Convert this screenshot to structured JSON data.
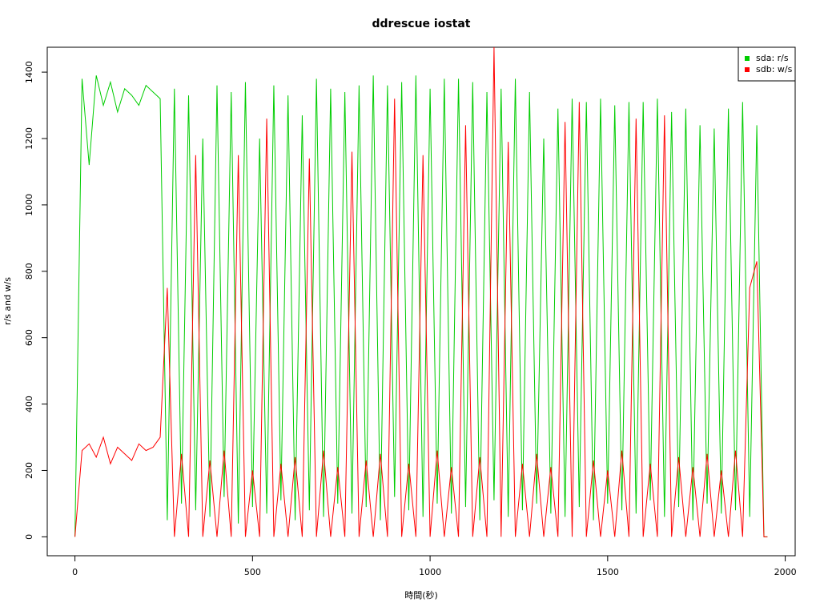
{
  "chart_data": {
    "type": "line",
    "title": "ddrescue iostat",
    "x_label": "時間(秒)",
    "y_label": "r/s and w/s",
    "x": [
      0,
      20,
      40,
      60,
      80,
      100,
      120,
      140,
      160,
      180,
      200,
      220,
      240,
      260,
      280,
      300,
      320,
      340,
      360,
      380,
      400,
      420,
      440,
      460,
      480,
      500,
      520,
      540,
      560,
      580,
      600,
      620,
      640,
      660,
      680,
      700,
      720,
      740,
      760,
      780,
      800,
      820,
      840,
      860,
      880,
      900,
      920,
      940,
      960,
      980,
      1000,
      1020,
      1040,
      1060,
      1080,
      1100,
      1120,
      1140,
      1160,
      1180,
      1200,
      1220,
      1240,
      1260,
      1280,
      1300,
      1320,
      1340,
      1360,
      1380,
      1400,
      1420,
      1440,
      1460,
      1480,
      1500,
      1520,
      1540,
      1560,
      1580,
      1600,
      1620,
      1640,
      1660,
      1680,
      1700,
      1720,
      1740,
      1760,
      1780,
      1800,
      1820,
      1840,
      1860,
      1880,
      1900,
      1920,
      1940,
      1950
    ],
    "series": [
      {
        "name": "sda: r/s",
        "color": "#00cd00",
        "values": [
          0,
          1380,
          1120,
          1390,
          1300,
          1370,
          1280,
          1350,
          1330,
          1300,
          1360,
          1340,
          1320,
          50,
          1350,
          100,
          1330,
          80,
          1200,
          60,
          1360,
          120,
          1340,
          40,
          1370,
          90,
          1200,
          70,
          1360,
          110,
          1330,
          50,
          1270,
          80,
          1380,
          60,
          1350,
          100,
          1340,
          70,
          1360,
          90,
          1390,
          50,
          1360,
          120,
          1370,
          80,
          1390,
          60,
          1350,
          100,
          1380,
          70,
          1380,
          90,
          1370,
          50,
          1340,
          110,
          1350,
          60,
          1380,
          80,
          1340,
          100,
          1200,
          70,
          1290,
          60,
          1320,
          90,
          1310,
          50,
          1320,
          100,
          1300,
          80,
          1310,
          70,
          1310,
          110,
          1320,
          60,
          1280,
          90,
          1290,
          50,
          1240,
          100,
          1230,
          70,
          1290,
          80,
          1310,
          60,
          1240,
          0,
          0
        ]
      },
      {
        "name": "sdb: w/s",
        "color": "#ff0000",
        "values": [
          0,
          260,
          280,
          240,
          300,
          220,
          270,
          250,
          230,
          280,
          260,
          270,
          300,
          750,
          0,
          250,
          0,
          1150,
          0,
          230,
          0,
          260,
          0,
          1150,
          0,
          200,
          0,
          1260,
          0,
          220,
          0,
          240,
          0,
          1140,
          0,
          260,
          0,
          210,
          0,
          1160,
          0,
          230,
          0,
          250,
          0,
          1320,
          0,
          220,
          0,
          1150,
          0,
          260,
          0,
          210,
          0,
          1240,
          0,
          240,
          0,
          1475,
          0,
          1190,
          0,
          220,
          0,
          250,
          0,
          210,
          0,
          1250,
          0,
          1310,
          0,
          230,
          0,
          200,
          0,
          260,
          0,
          1260,
          0,
          220,
          0,
          1270,
          0,
          240,
          0,
          210,
          0,
          250,
          0,
          200,
          0,
          260,
          0,
          750,
          830,
          0,
          0
        ]
      }
    ],
    "xlim": [
      -78,
      2028
    ],
    "ylim": [
      -57,
      1475
    ],
    "xticks": [
      0,
      500,
      1000,
      1500,
      2000
    ],
    "yticks": [
      0,
      200,
      400,
      600,
      800,
      1000,
      1200,
      1400
    ],
    "legend": "top-right"
  }
}
